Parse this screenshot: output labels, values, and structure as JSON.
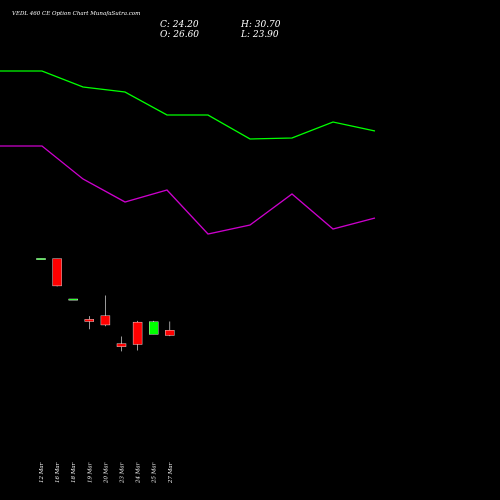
{
  "header": {
    "title": "VEDL 460  CE Option  Chart MunafaSutra.com",
    "close": "C: 24.20",
    "open": "O: 26.60",
    "high": "H: 30.70",
    "low": "L: 23.90"
  },
  "chart_data": {
    "type": "candlestick",
    "categories": [
      "12 Mar",
      "16 Mar",
      "18 Mar",
      "19 Mar",
      "20 Mar",
      "23 Mar",
      "24 Mar",
      "25 Mar",
      "27 Mar"
    ],
    "candles": [
      {
        "date": "12 Mar",
        "open": 60.1,
        "high": 60.1,
        "low": 59.7,
        "close": 59.9
      },
      {
        "date": "16 Mar",
        "open": 60.0,
        "high": 60.0,
        "low": 47.0,
        "close": 47.3
      },
      {
        "date": "18 Mar",
        "open": 41.2,
        "high": 41.2,
        "low": 40.8,
        "close": 41.0
      },
      {
        "date": "19 Mar",
        "open": 31.7,
        "high": 33.2,
        "low": 27.1,
        "close": 30.7
      },
      {
        "date": "20 Mar",
        "open": 33.4,
        "high": 42.8,
        "low": 28.5,
        "close": 29.1
      },
      {
        "date": "23 Mar",
        "open": 20.4,
        "high": 23.7,
        "low": 16.8,
        "close": 19.0
      },
      {
        "date": "24 Mar",
        "open": 30.4,
        "high": 31.0,
        "low": 17.2,
        "close": 20.0
      },
      {
        "date": "25 Mar",
        "open": 24.7,
        "high": 31.0,
        "low": 24.7,
        "close": 30.6
      },
      {
        "date": "27 Mar",
        "open": 26.6,
        "high": 30.7,
        "low": 23.9,
        "close": 24.2
      }
    ],
    "lines": [
      {
        "color": "#00ff00",
        "points": [
          [
            0,
            71
          ],
          [
            42,
            71
          ],
          [
            83,
            87
          ],
          [
            125,
            92
          ],
          [
            167,
            115
          ],
          [
            208,
            115
          ],
          [
            250,
            139
          ],
          [
            292,
            138
          ],
          [
            333,
            122
          ],
          [
            375,
            131
          ]
        ]
      },
      {
        "color": "#cc00cc",
        "points": [
          [
            0,
            146
          ],
          [
            42,
            146
          ],
          [
            83,
            179
          ],
          [
            125,
            202
          ],
          [
            167,
            190
          ],
          [
            208,
            234
          ],
          [
            250,
            225
          ],
          [
            292,
            194
          ],
          [
            333,
            229
          ],
          [
            375,
            218
          ]
        ]
      }
    ],
    "price_to_y": {
      "a": 387.4,
      "b": -2.146
    },
    "colors": {
      "up": "#00ff00",
      "down": "#ff0000",
      "flat": "#00ff00",
      "wick": "#ffffff",
      "background": "#000000"
    }
  }
}
